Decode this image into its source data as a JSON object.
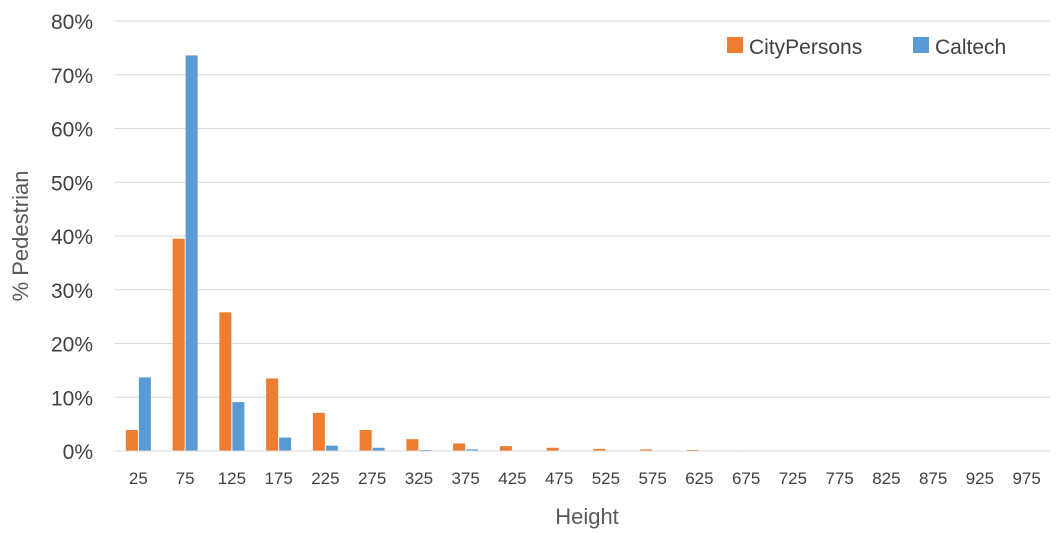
{
  "chart_data": {
    "type": "bar",
    "title": "",
    "xlabel": "Height",
    "ylabel": "% Pedestrian",
    "categories": [
      "25",
      "75",
      "125",
      "175",
      "225",
      "275",
      "325",
      "375",
      "425",
      "475",
      "525",
      "575",
      "625",
      "675",
      "725",
      "775",
      "825",
      "875",
      "925",
      "975"
    ],
    "series": [
      {
        "name": "CityPersons",
        "color": "#ed7d31",
        "values": [
          3.9,
          39.5,
          25.8,
          13.5,
          7.1,
          3.9,
          2.2,
          1.4,
          0.9,
          0.6,
          0.4,
          0.3,
          0.2,
          0.1,
          0.05,
          0.05,
          0.03,
          0.02,
          0.01,
          0.01
        ]
      },
      {
        "name": "Caltech",
        "color": "#5b9bd5",
        "values": [
          13.7,
          73.6,
          9.1,
          2.5,
          1.0,
          0.6,
          0.2,
          0.3,
          0.0,
          0.0,
          0.0,
          0.0,
          0.0,
          0.0,
          0.0,
          0.0,
          0.0,
          0.0,
          0.0,
          0.0
        ]
      }
    ],
    "ylim": [
      0,
      80
    ],
    "yticks": [
      "0%",
      "10%",
      "20%",
      "30%",
      "40%",
      "50%",
      "60%",
      "70%",
      "80%"
    ],
    "ytick_values": [
      0,
      10,
      20,
      30,
      40,
      50,
      60,
      70,
      80
    ],
    "grid": true,
    "legend": "top-right"
  }
}
